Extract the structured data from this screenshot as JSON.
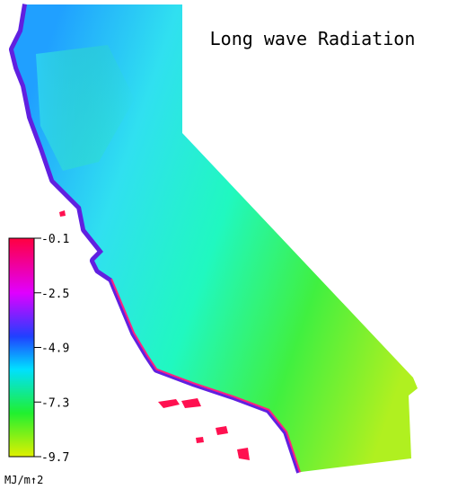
{
  "title": "Long wave Radiation",
  "colorbar": {
    "ticks": [
      -0.1,
      -2.5,
      -4.9,
      -7.3,
      -9.7
    ],
    "unit": "MJ/m↑2"
  }
}
